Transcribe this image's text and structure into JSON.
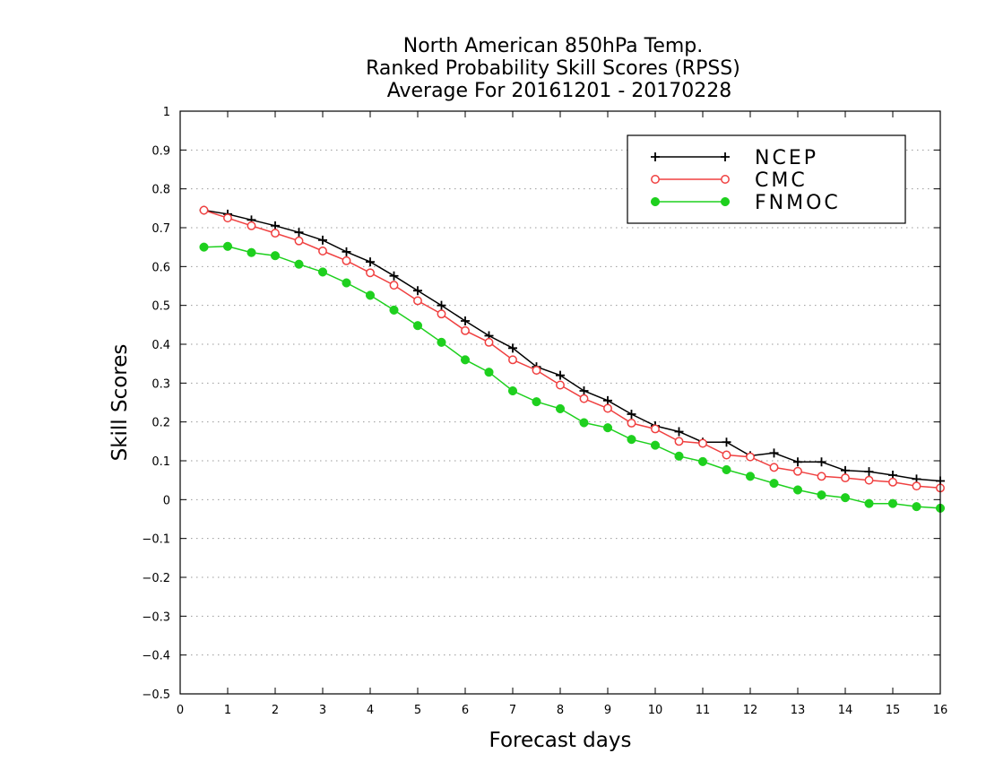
{
  "chart_data": {
    "type": "line",
    "title_lines": [
      "North American 850hPa Temp.",
      "Ranked Probability Skill Scores (RPSS)",
      "Average For 20161201 - 20170228"
    ],
    "xlabel": "Forecast days",
    "ylabel": "Skill Scores",
    "xlim": [
      0,
      16
    ],
    "ylim": [
      -0.5,
      1
    ],
    "x_ticks": [
      0,
      1,
      2,
      3,
      4,
      5,
      6,
      7,
      8,
      9,
      10,
      11,
      12,
      13,
      14,
      15,
      16
    ],
    "y_ticks": [
      -0.5,
      -0.4,
      -0.3,
      -0.2,
      -0.1,
      0,
      0.1,
      0.2,
      0.3,
      0.4,
      0.5,
      0.6,
      0.7,
      0.8,
      0.9,
      1
    ],
    "y_tick_labels": [
      "−0.5",
      "−0.4",
      "−0.3",
      "−0.2",
      "−0.1",
      "0",
      "0.1",
      "0.2",
      "0.3",
      "0.4",
      "0.5",
      "0.6",
      "0.7",
      "0.8",
      "0.9",
      "1"
    ],
    "grid": "horizontal dotted",
    "legend_position": "top-right",
    "x": [
      0.5,
      1,
      1.5,
      2,
      2.5,
      3,
      3.5,
      4,
      4.5,
      5,
      5.5,
      6,
      6.5,
      7,
      7.5,
      8,
      8.5,
      9,
      9.5,
      10,
      10.5,
      11,
      11.5,
      12,
      12.5,
      13,
      13.5,
      14,
      14.5,
      15,
      15.5,
      16
    ],
    "series": [
      {
        "name": "NCEP",
        "color": "#000000",
        "marker": "plus",
        "values": [
          0.745,
          0.735,
          0.72,
          0.705,
          0.688,
          0.668,
          0.638,
          0.612,
          0.576,
          0.538,
          0.5,
          0.46,
          0.422,
          0.39,
          0.342,
          0.32,
          0.28,
          0.255,
          0.22,
          0.19,
          0.175,
          0.148,
          0.148,
          0.113,
          0.12,
          0.097,
          0.097,
          0.075,
          0.072,
          0.063,
          0.053,
          0.048
        ]
      },
      {
        "name": "CMC",
        "color": "#f04040",
        "marker": "open-circle",
        "values": [
          0.745,
          0.725,
          0.705,
          0.686,
          0.666,
          0.64,
          0.615,
          0.584,
          0.552,
          0.512,
          0.478,
          0.435,
          0.405,
          0.36,
          0.333,
          0.295,
          0.26,
          0.235,
          0.197,
          0.182,
          0.15,
          0.145,
          0.115,
          0.11,
          0.083,
          0.073,
          0.06,
          0.056,
          0.05,
          0.045,
          0.035,
          0.03
        ]
      },
      {
        "name": "FNMOC",
        "color": "#1ed01e",
        "marker": "filled-circle",
        "values": [
          0.65,
          0.652,
          0.636,
          0.628,
          0.606,
          0.586,
          0.558,
          0.526,
          0.488,
          0.448,
          0.405,
          0.36,
          0.328,
          0.28,
          0.252,
          0.234,
          0.198,
          0.185,
          0.155,
          0.14,
          0.112,
          0.098,
          0.077,
          0.06,
          0.042,
          0.025,
          0.012,
          0.005,
          -0.01,
          -0.01,
          -0.018,
          -0.022
        ]
      }
    ]
  }
}
